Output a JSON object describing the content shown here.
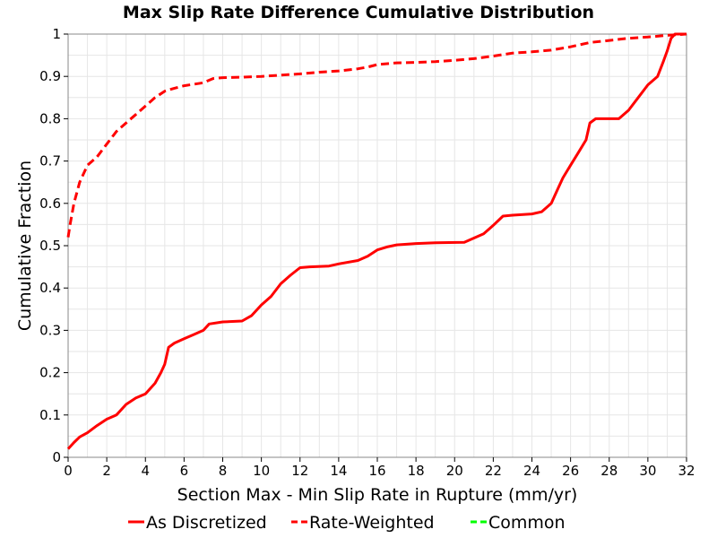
{
  "chart_data": {
    "type": "line",
    "title": "Max Slip Rate Difference Cumulative Distribution",
    "xlabel": "Section Max - Min Slip Rate in Rupture (mm/yr)",
    "ylabel": "Cumulative Fraction",
    "xlim": [
      0,
      32
    ],
    "ylim": [
      0,
      1
    ],
    "x_ticks": [
      "0",
      "2",
      "4",
      "6",
      "8",
      "10",
      "12",
      "14",
      "16",
      "18",
      "20",
      "22",
      "24",
      "26",
      "28",
      "30",
      "32"
    ],
    "y_ticks": [
      "0",
      "0.1",
      "0.2",
      "0.3",
      "0.4",
      "0.5",
      "0.6",
      "0.7",
      "0.8",
      "0.9",
      "1"
    ],
    "grid": true,
    "legend_position": "bottom",
    "series": [
      {
        "name": "As Discretized",
        "color": "#ff0000",
        "dash": "solid",
        "points": [
          [
            0,
            0.02
          ],
          [
            0.3,
            0.035
          ],
          [
            0.6,
            0.048
          ],
          [
            1,
            0.058
          ],
          [
            1.5,
            0.075
          ],
          [
            2,
            0.09
          ],
          [
            2.5,
            0.1
          ],
          [
            3,
            0.125
          ],
          [
            3.5,
            0.14
          ],
          [
            4,
            0.15
          ],
          [
            4.5,
            0.175
          ],
          [
            4.8,
            0.2
          ],
          [
            5,
            0.22
          ],
          [
            5.2,
            0.26
          ],
          [
            5.5,
            0.27
          ],
          [
            6,
            0.28
          ],
          [
            6.5,
            0.29
          ],
          [
            7,
            0.3
          ],
          [
            7.3,
            0.315
          ],
          [
            8,
            0.32
          ],
          [
            9,
            0.322
          ],
          [
            9.5,
            0.335
          ],
          [
            10,
            0.36
          ],
          [
            10.5,
            0.38
          ],
          [
            11,
            0.41
          ],
          [
            11.5,
            0.43
          ],
          [
            12,
            0.448
          ],
          [
            12.5,
            0.45
          ],
          [
            13.5,
            0.452
          ],
          [
            14,
            0.457
          ],
          [
            15,
            0.465
          ],
          [
            15.5,
            0.475
          ],
          [
            16,
            0.49
          ],
          [
            16.5,
            0.497
          ],
          [
            17,
            0.502
          ],
          [
            18,
            0.505
          ],
          [
            19,
            0.507
          ],
          [
            20.5,
            0.508
          ],
          [
            21,
            0.518
          ],
          [
            21.5,
            0.528
          ],
          [
            22,
            0.548
          ],
          [
            22.5,
            0.57
          ],
          [
            23,
            0.572
          ],
          [
            24,
            0.575
          ],
          [
            24.5,
            0.58
          ],
          [
            25,
            0.6
          ],
          [
            25.3,
            0.63
          ],
          [
            25.6,
            0.66
          ],
          [
            26,
            0.69
          ],
          [
            26.4,
            0.72
          ],
          [
            26.8,
            0.75
          ],
          [
            27,
            0.79
          ],
          [
            27.3,
            0.8
          ],
          [
            28.5,
            0.8
          ],
          [
            29,
            0.82
          ],
          [
            29.5,
            0.85
          ],
          [
            30,
            0.88
          ],
          [
            30.5,
            0.9
          ],
          [
            30.8,
            0.935
          ],
          [
            31,
            0.96
          ],
          [
            31.2,
            0.99
          ],
          [
            31.4,
            1.0
          ],
          [
            32,
            1.0
          ]
        ]
      },
      {
        "name": "Rate-Weighted",
        "color": "#ff0000",
        "dash": "dashed",
        "points": [
          [
            0,
            0.52
          ],
          [
            0.1,
            0.55
          ],
          [
            0.3,
            0.6
          ],
          [
            0.6,
            0.65
          ],
          [
            1,
            0.69
          ],
          [
            1.5,
            0.71
          ],
          [
            2,
            0.74
          ],
          [
            2.5,
            0.77
          ],
          [
            3,
            0.79
          ],
          [
            3.5,
            0.81
          ],
          [
            4,
            0.83
          ],
          [
            4.5,
            0.85
          ],
          [
            5,
            0.865
          ],
          [
            5.5,
            0.872
          ],
          [
            6,
            0.878
          ],
          [
            7,
            0.885
          ],
          [
            7.5,
            0.895
          ],
          [
            8,
            0.897
          ],
          [
            9,
            0.898
          ],
          [
            10,
            0.9
          ],
          [
            11,
            0.903
          ],
          [
            12,
            0.906
          ],
          [
            13,
            0.91
          ],
          [
            14,
            0.913
          ],
          [
            15,
            0.918
          ],
          [
            15.5,
            0.922
          ],
          [
            16,
            0.928
          ],
          [
            17,
            0.932
          ],
          [
            18,
            0.933
          ],
          [
            19,
            0.935
          ],
          [
            20,
            0.938
          ],
          [
            21,
            0.942
          ],
          [
            22,
            0.948
          ],
          [
            23,
            0.955
          ],
          [
            24,
            0.958
          ],
          [
            25,
            0.962
          ],
          [
            26,
            0.97
          ],
          [
            27,
            0.98
          ],
          [
            28,
            0.985
          ],
          [
            29,
            0.99
          ],
          [
            30,
            0.993
          ],
          [
            31,
            0.997
          ],
          [
            32,
            1.0
          ]
        ]
      },
      {
        "name": "Common",
        "color": "#00ff00",
        "dash": "dashed",
        "points": []
      }
    ]
  }
}
